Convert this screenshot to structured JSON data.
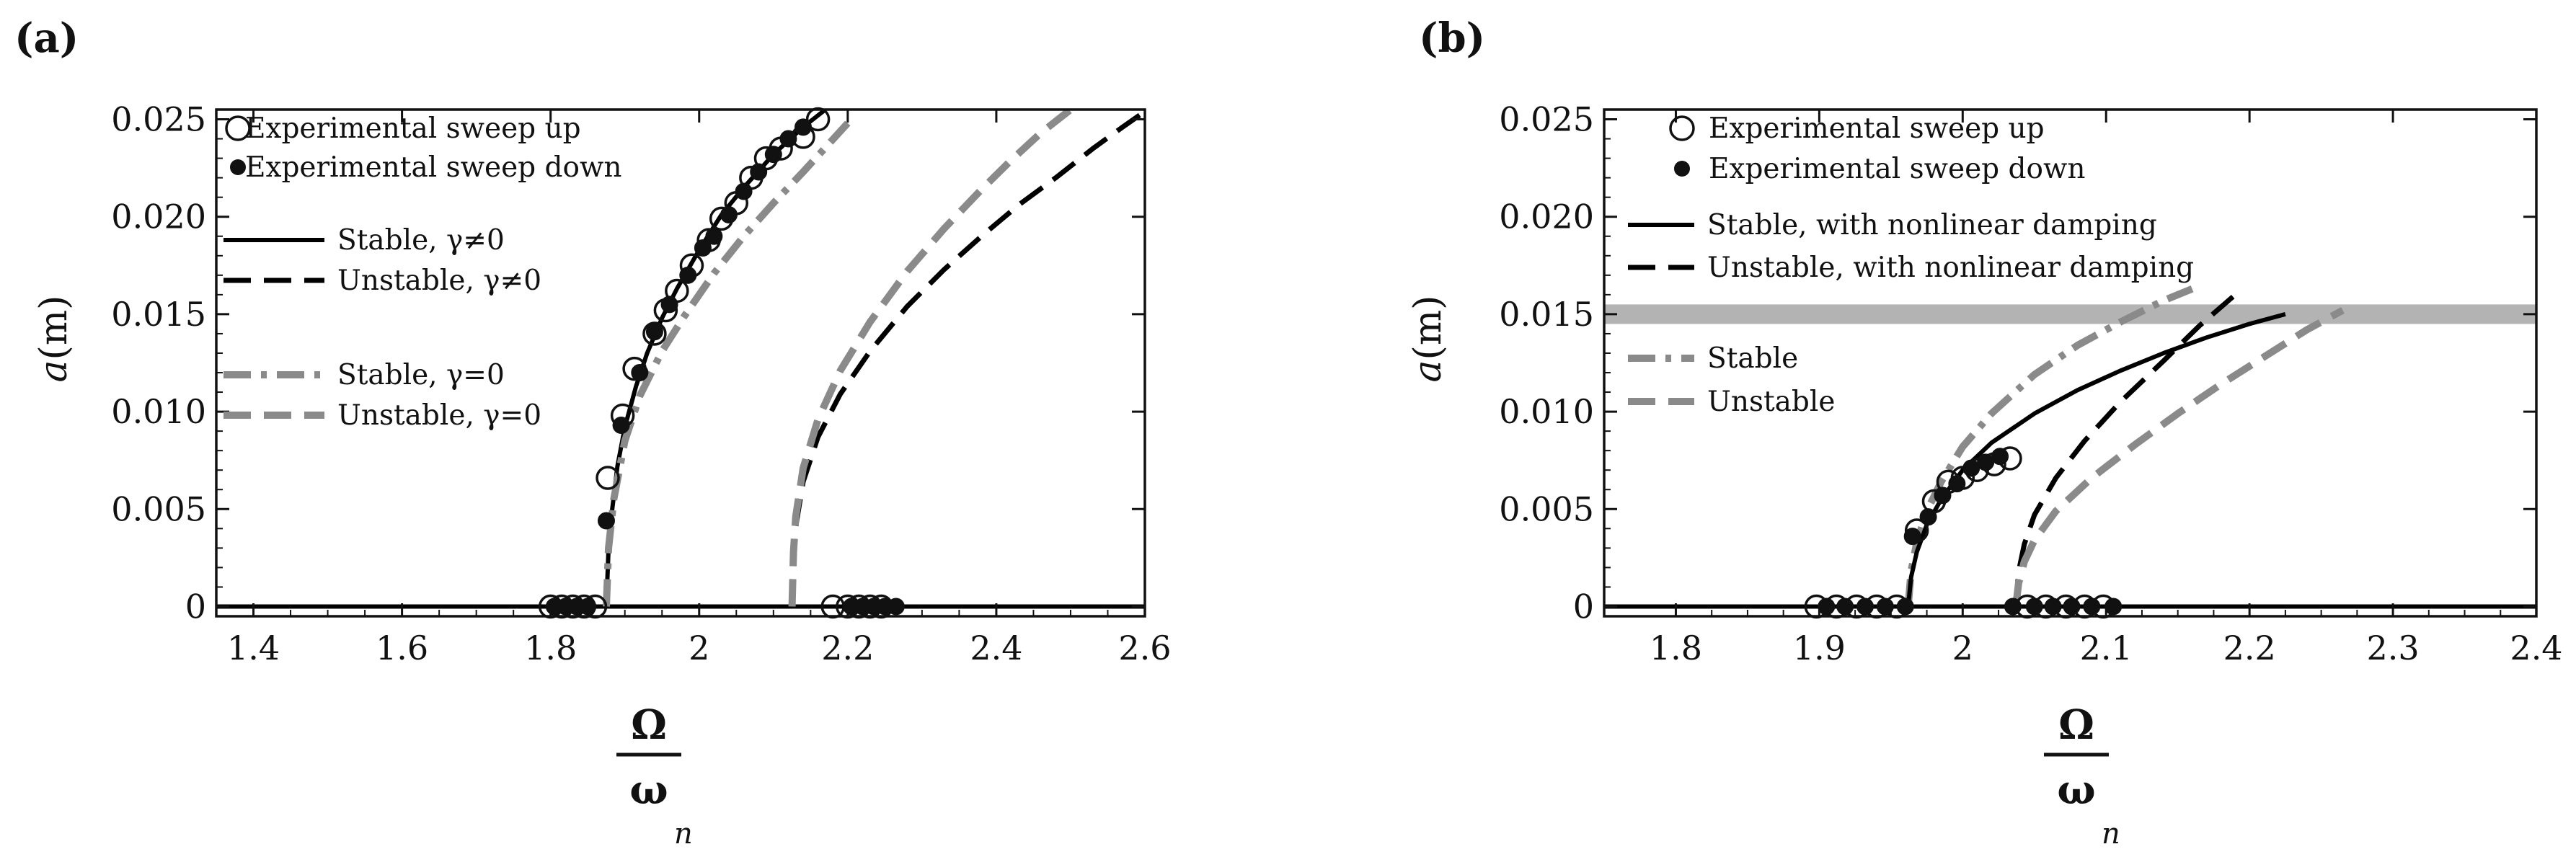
{
  "chart_data": [
    {
      "type": "line",
      "panel_label": "(a)",
      "ylabel_var": "a",
      "ylabel_unit": "(m)",
      "xlabel_num": "Ω",
      "xlabel_den": "ω",
      "xlabel_sub": "n",
      "xlim": [
        1.35,
        2.6
      ],
      "ylim": [
        -0.0005,
        0.0255
      ],
      "xticks": [
        1.4,
        1.6,
        1.8,
        2.0,
        2.2,
        2.4,
        2.6
      ],
      "xtick_labels": [
        "1.4",
        "1.6",
        "1.8",
        "2",
        "2.2",
        "2.4",
        "2.6"
      ],
      "yticks": [
        0,
        0.005,
        0.01,
        0.015,
        0.02,
        0.025
      ],
      "ytick_labels": [
        "0",
        "0.005",
        "0.010",
        "0.015",
        "0.020",
        "0.025"
      ],
      "legend": [
        {
          "label": "Experimental sweep up",
          "kind": "open-circle"
        },
        {
          "label": "Experimental sweep down",
          "kind": "filled-circle"
        },
        {
          "label": "Stable, γ≠0",
          "kind": "solid"
        },
        {
          "label": "Unstable, γ≠0",
          "kind": "dash"
        },
        {
          "label": "Stable, γ=0",
          "kind": "gray-dashdot"
        },
        {
          "label": "Unstable, γ=0",
          "kind": "gray-dash"
        }
      ],
      "series": [
        {
          "kind": "solid",
          "color": "#000000",
          "x": [
            1.35,
            2.6
          ],
          "y": [
            0,
            0
          ]
        },
        {
          "kind": "dotted",
          "color": "#000000",
          "x": [
            1.875,
            2.125
          ],
          "y": [
            0,
            0
          ]
        },
        {
          "kind": "solid",
          "color": "#000000",
          "x": [
            1.875,
            1.878,
            1.883,
            1.89,
            1.9,
            1.915,
            1.93,
            1.95,
            1.97,
            2.0,
            2.03,
            2.06,
            2.1,
            2.14,
            2.17
          ],
          "y": [
            0,
            0.003,
            0.005,
            0.0072,
            0.0092,
            0.0113,
            0.013,
            0.0148,
            0.0163,
            0.0183,
            0.0201,
            0.0215,
            0.0232,
            0.0246,
            0.0255
          ]
        },
        {
          "kind": "gray-dashdot",
          "color": "#8a8a8a",
          "x": [
            1.875,
            1.878,
            1.885,
            1.9,
            1.92,
            1.95,
            1.98,
            2.02,
            2.06,
            2.1,
            2.14,
            2.2
          ],
          "y": [
            0,
            0.003,
            0.0055,
            0.0085,
            0.0108,
            0.0131,
            0.0149,
            0.0171,
            0.019,
            0.0207,
            0.0223,
            0.0248
          ]
        },
        {
          "kind": "dash",
          "color": "#000000",
          "x": [
            2.125,
            2.127,
            2.13,
            2.14,
            2.16,
            2.19,
            2.23,
            2.28,
            2.33,
            2.38,
            2.43,
            2.48,
            2.53,
            2.57,
            2.6
          ],
          "y": [
            0,
            0.0025,
            0.0041,
            0.0064,
            0.0087,
            0.0109,
            0.0131,
            0.0154,
            0.0173,
            0.019,
            0.0206,
            0.022,
            0.0235,
            0.0246,
            0.0254
          ]
        },
        {
          "kind": "gray-dash",
          "color": "#8a8a8a",
          "x": [
            2.125,
            2.127,
            2.13,
            2.14,
            2.16,
            2.19,
            2.23,
            2.28,
            2.33,
            2.38,
            2.42,
            2.46,
            2.5
          ],
          "y": [
            0,
            0.0028,
            0.0046,
            0.0071,
            0.0096,
            0.0121,
            0.0146,
            0.0172,
            0.0194,
            0.0214,
            0.0229,
            0.0243,
            0.0255
          ]
        }
      ],
      "sweep_up": [
        {
          "x": 1.8,
          "y": 0
        },
        {
          "x": 1.815,
          "y": 0
        },
        {
          "x": 1.83,
          "y": 0
        },
        {
          "x": 1.845,
          "y": 0
        },
        {
          "x": 1.86,
          "y": 0
        },
        {
          "x": 1.877,
          "y": 0.0066
        },
        {
          "x": 1.897,
          "y": 0.0098
        },
        {
          "x": 1.913,
          "y": 0.0122
        },
        {
          "x": 1.94,
          "y": 0.014
        },
        {
          "x": 1.955,
          "y": 0.0152
        },
        {
          "x": 1.97,
          "y": 0.0162
        },
        {
          "x": 1.99,
          "y": 0.0175
        },
        {
          "x": 2.013,
          "y": 0.0188
        },
        {
          "x": 2.03,
          "y": 0.0199
        },
        {
          "x": 2.05,
          "y": 0.0207
        },
        {
          "x": 2.07,
          "y": 0.022
        },
        {
          "x": 2.09,
          "y": 0.023
        },
        {
          "x": 2.11,
          "y": 0.0235
        },
        {
          "x": 2.14,
          "y": 0.0241
        },
        {
          "x": 2.16,
          "y": 0.025
        },
        {
          "x": 2.18,
          "y": 0
        },
        {
          "x": 2.2,
          "y": 0
        },
        {
          "x": 2.215,
          "y": 0
        },
        {
          "x": 2.23,
          "y": 0
        },
        {
          "x": 2.245,
          "y": 0
        }
      ],
      "sweep_down": [
        {
          "x": 1.805,
          "y": 0
        },
        {
          "x": 1.82,
          "y": 0
        },
        {
          "x": 1.835,
          "y": 0
        },
        {
          "x": 1.85,
          "y": 0
        },
        {
          "x": 1.875,
          "y": 0.0044
        },
        {
          "x": 1.895,
          "y": 0.0093
        },
        {
          "x": 1.92,
          "y": 0.012
        },
        {
          "x": 1.94,
          "y": 0.0141
        },
        {
          "x": 1.96,
          "y": 0.0155
        },
        {
          "x": 1.985,
          "y": 0.017
        },
        {
          "x": 2.005,
          "y": 0.0184
        },
        {
          "x": 2.02,
          "y": 0.019
        },
        {
          "x": 2.04,
          "y": 0.0201
        },
        {
          "x": 2.06,
          "y": 0.0213
        },
        {
          "x": 2.08,
          "y": 0.0223
        },
        {
          "x": 2.1,
          "y": 0.0232
        },
        {
          "x": 2.12,
          "y": 0.024
        },
        {
          "x": 2.14,
          "y": 0.0246
        },
        {
          "x": 2.205,
          "y": 0
        },
        {
          "x": 2.22,
          "y": 0
        },
        {
          "x": 2.235,
          "y": 0
        },
        {
          "x": 2.25,
          "y": 0
        },
        {
          "x": 2.265,
          "y": 0
        }
      ]
    },
    {
      "type": "line",
      "panel_label": "(b)",
      "ylabel_var": "a",
      "ylabel_unit": "(m)",
      "xlabel_num": "Ω",
      "xlabel_den": "ω",
      "xlabel_sub": "n",
      "xlim": [
        1.75,
        2.4
      ],
      "ylim": [
        -0.0005,
        0.0255
      ],
      "xticks": [
        1.8,
        1.9,
        2.0,
        2.1,
        2.2,
        2.3,
        2.4
      ],
      "xtick_labels": [
        "1.8",
        "1.9",
        "2",
        "2.1",
        "2.2",
        "2.3",
        "2.4"
      ],
      "yticks": [
        0,
        0.005,
        0.01,
        0.015,
        0.02,
        0.025
      ],
      "ytick_labels": [
        "0",
        "0.005",
        "0.010",
        "0.015",
        "0.020",
        "0.025"
      ],
      "band": {
        "y0": 0.0145,
        "y1": 0.0155,
        "color": "#b3b3b3"
      },
      "legend": [
        {
          "label": "Experimental sweep up",
          "kind": "open-circle"
        },
        {
          "label": "Experimental sweep down",
          "kind": "filled-circle"
        },
        {
          "label": "Stable, with nonlinear damping",
          "kind": "solid"
        },
        {
          "label": "Unstable, with nonlinear damping",
          "kind": "dash"
        },
        {
          "label": "Stable",
          "kind": "gray-dashdot"
        },
        {
          "label": "Unstable",
          "kind": "gray-dash"
        }
      ],
      "series": [
        {
          "kind": "solid",
          "color": "#000000",
          "x": [
            1.75,
            2.4
          ],
          "y": [
            0,
            0
          ]
        },
        {
          "kind": "dotted",
          "color": "#000000",
          "x": [
            1.962,
            2.037
          ],
          "y": [
            0,
            0
          ]
        },
        {
          "kind": "gray-dashdot",
          "color": "#8a8a8a",
          "x": [
            1.962,
            1.964,
            1.968,
            1.975,
            1.985,
            2.0,
            2.02,
            2.05,
            2.08,
            2.11,
            2.14,
            2.16
          ],
          "y": [
            0,
            0.0018,
            0.0033,
            0.0049,
            0.0064,
            0.0082,
            0.0099,
            0.0119,
            0.0134,
            0.0146,
            0.0157,
            0.0163
          ]
        },
        {
          "kind": "solid",
          "color": "#000000",
          "x": [
            1.962,
            1.964,
            1.968,
            1.975,
            1.985,
            2.0,
            2.02,
            2.05,
            2.08,
            2.11,
            2.14,
            2.17,
            2.2,
            2.225
          ],
          "y": [
            0,
            0.0015,
            0.0028,
            0.0042,
            0.0055,
            0.007,
            0.0084,
            0.0099,
            0.0111,
            0.0121,
            0.013,
            0.0138,
            0.0145,
            0.015
          ]
        },
        {
          "kind": "dash",
          "color": "#000000",
          "x": [
            2.037,
            2.039,
            2.043,
            2.05,
            2.065,
            2.085,
            2.11,
            2.14,
            2.165,
            2.19
          ],
          "y": [
            0,
            0.0018,
            0.0032,
            0.0047,
            0.0066,
            0.0085,
            0.0105,
            0.0126,
            0.0144,
            0.016
          ]
        },
        {
          "kind": "gray-dash",
          "color": "#8a8a8a",
          "x": [
            2.037,
            2.039,
            2.043,
            2.05,
            2.065,
            2.09,
            2.12,
            2.15,
            2.18,
            2.21,
            2.24,
            2.265
          ],
          "y": [
            0,
            0.0012,
            0.0023,
            0.0034,
            0.0049,
            0.0066,
            0.0083,
            0.0099,
            0.0114,
            0.0128,
            0.0142,
            0.0152
          ]
        }
      ],
      "sweep_up": [
        {
          "x": 1.898,
          "y": 0
        },
        {
          "x": 1.912,
          "y": 0
        },
        {
          "x": 1.926,
          "y": 0
        },
        {
          "x": 1.94,
          "y": 0
        },
        {
          "x": 1.954,
          "y": 0
        },
        {
          "x": 1.968,
          "y": 0.0039
        },
        {
          "x": 1.98,
          "y": 0.0054
        },
        {
          "x": 1.99,
          "y": 0.0064
        },
        {
          "x": 2.0,
          "y": 0.0066
        },
        {
          "x": 2.01,
          "y": 0.007
        },
        {
          "x": 2.022,
          "y": 0.0073
        },
        {
          "x": 2.033,
          "y": 0.0076
        },
        {
          "x": 2.045,
          "y": 0
        },
        {
          "x": 2.058,
          "y": 0
        },
        {
          "x": 2.072,
          "y": 0
        },
        {
          "x": 2.085,
          "y": 0
        },
        {
          "x": 2.098,
          "y": 0
        }
      ],
      "sweep_down": [
        {
          "x": 1.905,
          "y": 0
        },
        {
          "x": 1.918,
          "y": 0
        },
        {
          "x": 1.932,
          "y": 0
        },
        {
          "x": 1.946,
          "y": 0
        },
        {
          "x": 1.96,
          "y": 0
        },
        {
          "x": 1.965,
          "y": 0.0036
        },
        {
          "x": 1.976,
          "y": 0.0046
        },
        {
          "x": 1.986,
          "y": 0.0057
        },
        {
          "x": 1.996,
          "y": 0.0063
        },
        {
          "x": 2.006,
          "y": 0.0071
        },
        {
          "x": 2.016,
          "y": 0.0074
        },
        {
          "x": 2.026,
          "y": 0.0077
        },
        {
          "x": 2.035,
          "y": 0
        },
        {
          "x": 2.05,
          "y": 0
        },
        {
          "x": 2.063,
          "y": 0
        },
        {
          "x": 2.076,
          "y": 0
        },
        {
          "x": 2.09,
          "y": 0
        },
        {
          "x": 2.105,
          "y": 0
        }
      ]
    }
  ]
}
